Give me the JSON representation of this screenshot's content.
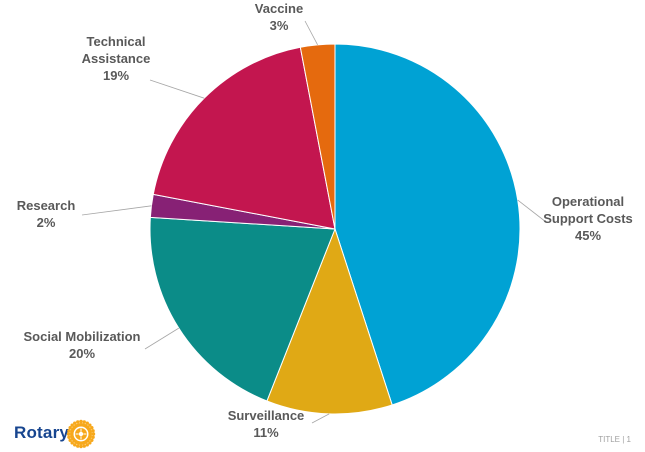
{
  "chart_data": {
    "type": "pie",
    "title": "",
    "slices": [
      {
        "label": [
          "Operational",
          "Support Costs"
        ],
        "value": 45,
        "display": "45%",
        "color": "#00a2d4"
      },
      {
        "label": [
          "Surveillance"
        ],
        "value": 11,
        "display": "11%",
        "color": "#e0a915"
      },
      {
        "label": [
          "Social Mobilization"
        ],
        "value": 20,
        "display": "20%",
        "color": "#0b8c88"
      },
      {
        "label": [
          "Research"
        ],
        "value": 2,
        "display": "2%",
        "color": "#872175"
      },
      {
        "label": [
          "Technical",
          "Assistance"
        ],
        "value": 19,
        "display": "19%",
        "color": "#c3164f"
      },
      {
        "label": [
          "Vaccine"
        ],
        "value": 3,
        "display": "3%",
        "color": "#e56a0e"
      }
    ]
  },
  "footer": {
    "logo_text": "Rotary",
    "logo_icon": "rotary-wheel-icon",
    "slide_marker": "TITLE | 1"
  }
}
